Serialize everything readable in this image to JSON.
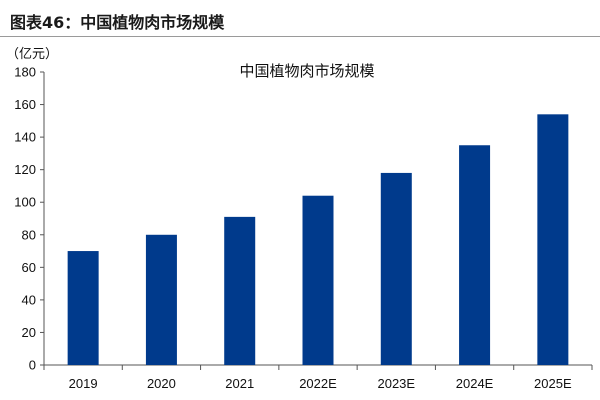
{
  "caption": "图表46：中国植物肉市场规模",
  "chart_data": {
    "type": "bar",
    "title": "中国植物肉市场规模",
    "unit_label": "（亿元）",
    "xlabel": "",
    "ylabel": "",
    "categories": [
      "2019",
      "2020",
      "2021",
      "2022E",
      "2023E",
      "2024E",
      "2025E"
    ],
    "values": [
      70,
      80,
      91,
      104,
      118,
      135,
      154
    ],
    "ylim": [
      0,
      180
    ],
    "yticks": [
      0,
      20,
      40,
      60,
      80,
      100,
      120,
      140,
      160,
      180
    ],
    "bar_color": "#003A8C",
    "grid": false,
    "legend": "none"
  }
}
